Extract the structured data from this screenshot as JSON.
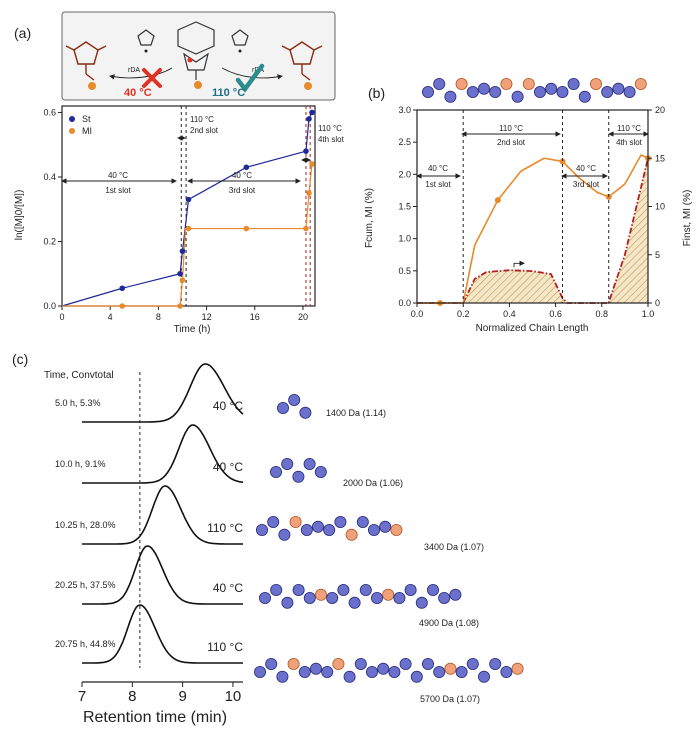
{
  "colors": {
    "st": "#1f2a9a",
    "mi": "#e8892a",
    "inst": "#b0201c",
    "bead_st": "#6a70cc",
    "bead_mi": "#f1a17a",
    "check": "#2a8c8c",
    "cross": "#e03222"
  },
  "scheme": {
    "rda_left": "rDA",
    "rda_right": "rDA",
    "temp_left": "40 °C",
    "temp_right": "110 °C"
  },
  "panel_a": {
    "label": "(a)",
    "ylabel": "ln([M]0/[M])",
    "xlabel": "Time (h)",
    "slots": [
      {
        "temp": "40 °C",
        "slot": "1st slot"
      },
      {
        "temp": "110 °C",
        "slot": "2nd slot"
      },
      {
        "temp": "40 °C",
        "slot": "3rd slot"
      },
      {
        "temp": "110 °C",
        "slot": "4th slot"
      }
    ]
  },
  "panel_b": {
    "label": "(b)",
    "ylabel_left": "Fcum, MI (%)",
    "ylabel_right": "Finst, MI (%)",
    "xlabel": "Normalized Chain Length",
    "slots": [
      {
        "temp": "40 °C",
        "slot": "1st slot"
      },
      {
        "temp": "110 °C",
        "slot": "2nd slot"
      },
      {
        "temp": "40 °C",
        "slot": "3rd slot"
      },
      {
        "temp": "110 °C",
        "slot": "4th slot"
      }
    ]
  },
  "panel_c": {
    "label": "(c)",
    "header": "Time, Convtotal",
    "xlabel": "Retention time (min)",
    "traces": [
      {
        "time_conv": "5.0 h, 5.3%",
        "temp": "40 °C",
        "mn": "1400 Da (1.14)",
        "peak": 9.45,
        "width": 0.3,
        "chain": "SSS"
      },
      {
        "time_conv": "10.0 h, 9.1%",
        "temp": "40 °C",
        "mn": "2000 Da (1.06)",
        "peak": 9.2,
        "width": 0.27,
        "chain": "SSSSS"
      },
      {
        "time_conv": "10.25 h, 28.0%",
        "temp": "110 °C",
        "mn": "3400 Da (1.07)",
        "peak": 8.65,
        "width": 0.25,
        "chain": "SSSMSSSSMSSSM"
      },
      {
        "time_conv": "20.25 h, 37.5%",
        "temp": "40 °C",
        "mn": "4900 Da (1.08)",
        "peak": 8.3,
        "width": 0.24,
        "chain": "SSSSSMSSSSSMSSSSSS"
      },
      {
        "time_conv": "20.75 h, 44.8%",
        "temp": "110 °C",
        "mn": "5700 Da (1.07)",
        "peak": 8.15,
        "width": 0.24,
        "chain": "SSSMSSSMSSSSSSSSSMSSSSSM"
      }
    ],
    "dashed_line_x": 8.15
  },
  "chart_data": [
    {
      "type": "scatter",
      "title": "",
      "xlabel": "Time (h)",
      "ylabel": "ln([M]0/[M])",
      "xlim": [
        0,
        21
      ],
      "ylim": [
        0,
        0.62
      ],
      "xticks": [
        "0",
        "4",
        "8",
        "12",
        "16",
        "20"
      ],
      "yticks": [
        "0.0",
        "0.2",
        "0.4",
        "0.6"
      ],
      "legend_position": "top-left",
      "series": [
        {
          "name": "St",
          "x": [
            0,
            5,
            9.8,
            10.0,
            10.25,
            10.5,
            15.3,
            20.25,
            20.5,
            20.75
          ],
          "y": [
            0,
            0.055,
            0.1,
            0.17,
            0.25,
            0.33,
            0.43,
            0.48,
            0.58,
            0.6
          ]
        },
        {
          "name": "MI",
          "x": [
            0,
            5,
            9.8,
            10.0,
            10.25,
            10.5,
            15.3,
            20.25,
            20.5,
            20.75
          ],
          "y": [
            0,
            0,
            0,
            0.08,
            0.24,
            0.24,
            0.24,
            0.24,
            0.35,
            0.44
          ]
        }
      ],
      "vlines": [
        9.9,
        10.3,
        20.25,
        20.6
      ]
    },
    {
      "type": "line",
      "title": "",
      "xlabel": "Normalized Chain Length",
      "ylabel_left": "Fcum, MI (%)",
      "ylabel_right": "Finst, MI (%)",
      "xlim": [
        0,
        1
      ],
      "ylim_left": [
        0,
        3.0
      ],
      "ylim_right": [
        0,
        20
      ],
      "xticks": [
        "0.0",
        "0.2",
        "0.4",
        "0.6",
        "0.8",
        "1.0"
      ],
      "yticks_left": [
        "0.0",
        "0.5",
        "1.0",
        "1.5",
        "2.0",
        "2.5",
        "3.0"
      ],
      "yticks_right": [
        "0",
        "5",
        "10",
        "15",
        "20"
      ],
      "vlines": [
        0.2,
        0.63,
        0.83
      ],
      "series": [
        {
          "name": "Fcum, MI",
          "axis": "left",
          "x": [
            0.0,
            0.1,
            0.2,
            0.25,
            0.35,
            0.45,
            0.55,
            0.63,
            0.7,
            0.78,
            0.83,
            0.9,
            0.97,
            1.0
          ],
          "y": [
            0.0,
            0.0,
            0.0,
            0.9,
            1.6,
            2.05,
            2.25,
            2.2,
            1.95,
            1.72,
            1.65,
            1.85,
            2.3,
            2.25
          ]
        },
        {
          "name": "Finst, MI",
          "axis": "right",
          "x": [
            0.0,
            0.2,
            0.22,
            0.25,
            0.3,
            0.4,
            0.5,
            0.58,
            0.63,
            0.65,
            0.83,
            0.85,
            0.9,
            0.95,
            1.0
          ],
          "y": [
            0,
            0,
            1,
            2.5,
            3.2,
            3.4,
            3.3,
            3.0,
            0.5,
            0,
            0,
            1.5,
            5,
            10,
            15
          ]
        }
      ]
    },
    {
      "type": "line",
      "title": "",
      "xlabel": "Retention time (min)",
      "xlim": [
        7,
        10.2
      ],
      "xticks": [
        "7",
        "8",
        "9",
        "10"
      ]
    }
  ]
}
